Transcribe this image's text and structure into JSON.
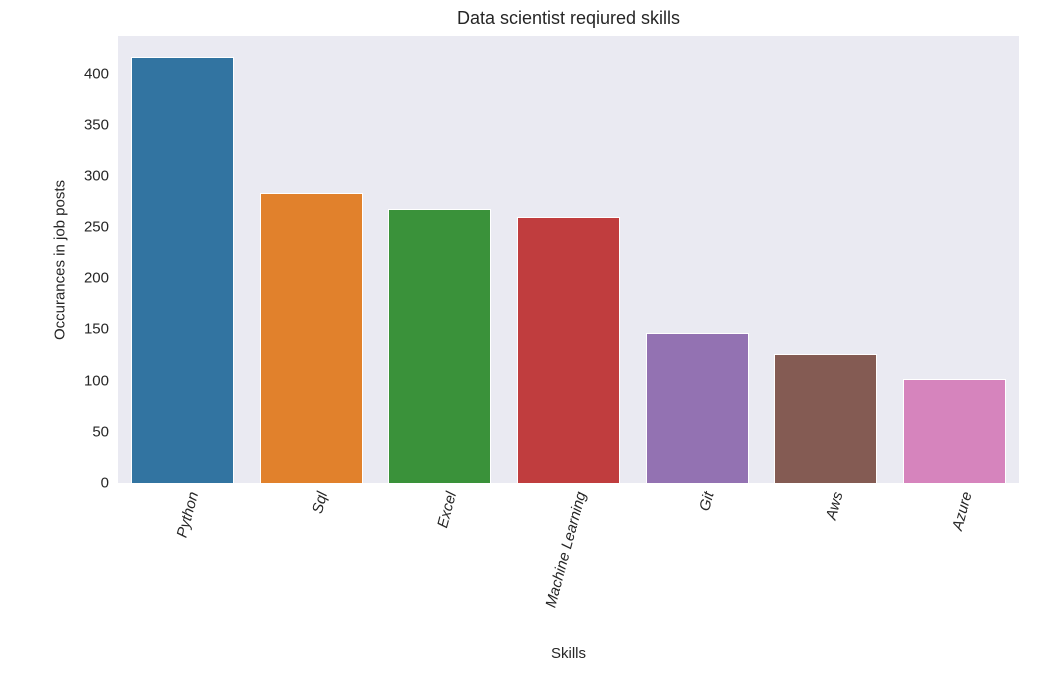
{
  "chart_data": {
    "type": "bar",
    "title": "Data scientist reqiured skills",
    "xlabel": "Skills",
    "ylabel": "Occurances in job posts",
    "categories": [
      "Python",
      "Sql",
      "Excel",
      "Machine Learning",
      "Git",
      "Aws",
      "Azure"
    ],
    "values": [
      416,
      283,
      268,
      260,
      147,
      126,
      102
    ],
    "colors": [
      "#3274a1",
      "#e1812c",
      "#3a923a",
      "#c03d3e",
      "#9372b2",
      "#845b53",
      "#d684bd"
    ],
    "yticks": [
      0,
      50,
      100,
      150,
      200,
      250,
      300,
      350,
      400
    ],
    "ylim": [
      0,
      436.8
    ],
    "grid": false,
    "background": "#eaeaf2",
    "xtick_rotation": 75,
    "legend": null
  }
}
